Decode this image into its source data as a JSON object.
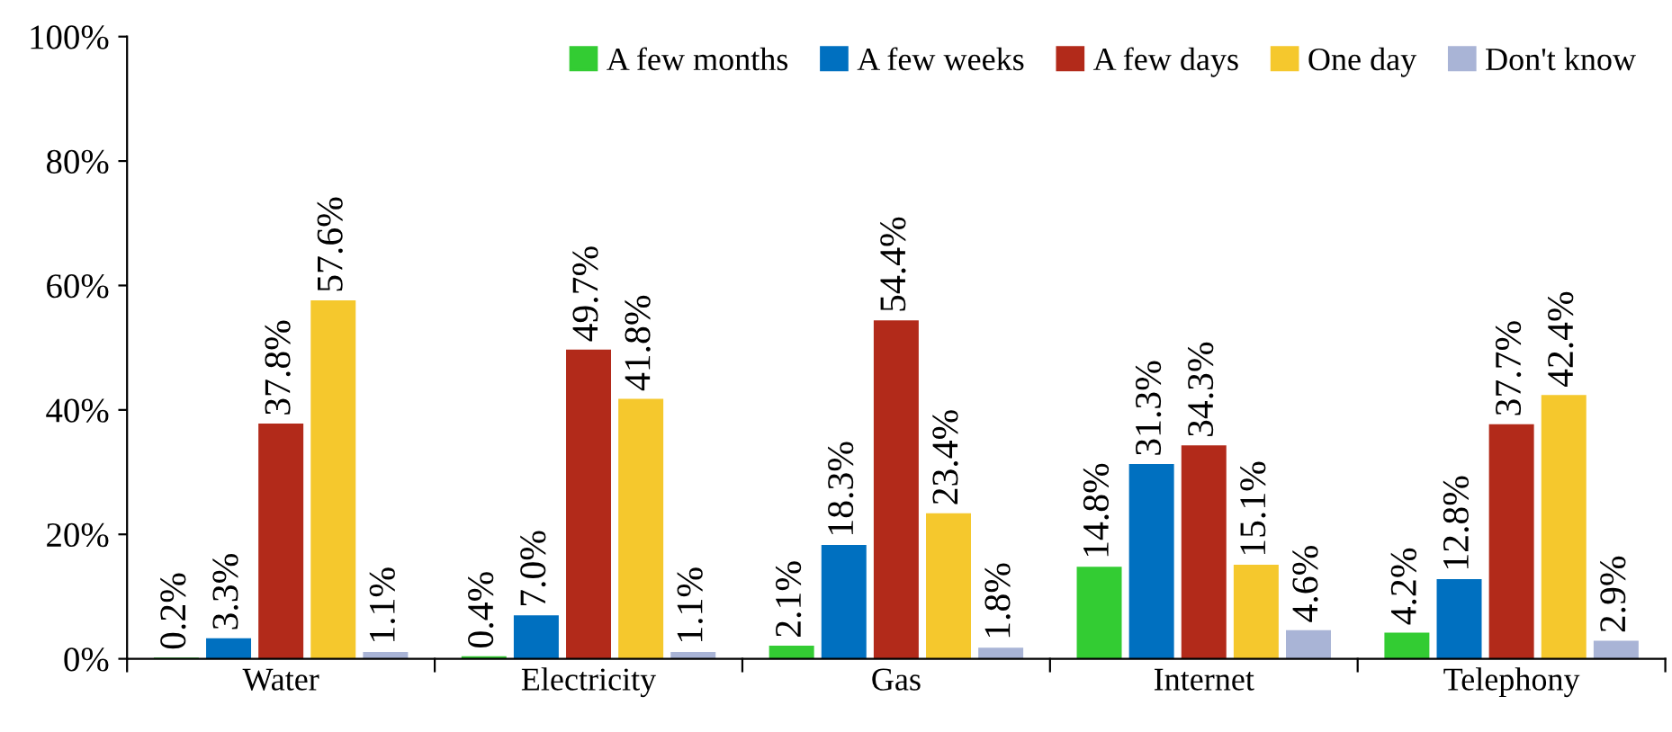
{
  "chart_data": {
    "type": "bar",
    "categories": [
      "Water",
      "Electricity",
      "Gas",
      "Internet",
      "Telephony"
    ],
    "series": [
      {
        "name": "A few months",
        "color": "#33cc33",
        "values": [
          0.2,
          0.4,
          2.1,
          14.8,
          4.2
        ],
        "value_labels": [
          "0.2%",
          "0.4%",
          "2.1%",
          "14.8%",
          "4.2%"
        ]
      },
      {
        "name": "A few weeks",
        "color": "#0070c0",
        "values": [
          3.3,
          7.0,
          18.3,
          31.3,
          12.8
        ],
        "value_labels": [
          "3.3%",
          "7.0%",
          "18.3%",
          "31.3%",
          "12.8%"
        ]
      },
      {
        "name": "A few days",
        "color": "#b22a1a",
        "values": [
          37.8,
          49.7,
          54.4,
          34.3,
          37.7
        ],
        "value_labels": [
          "37.8%",
          "49.7%",
          "54.4%",
          "34.3%",
          "37.7%"
        ]
      },
      {
        "name": "One day",
        "color": "#f5c82d",
        "values": [
          57.6,
          41.8,
          23.4,
          15.1,
          42.4
        ],
        "value_labels": [
          "57.6%",
          "41.8%",
          "23.4%",
          "15.1%",
          "42.4%"
        ]
      },
      {
        "name": "Don't know",
        "color": "#a9b4d6",
        "values": [
          1.1,
          1.1,
          1.8,
          4.6,
          2.9
        ],
        "value_labels": [
          "1.1%",
          "1.1%",
          "1.8%",
          "4.6%",
          "2.9%"
        ]
      }
    ],
    "ylim": [
      0,
      100
    ],
    "yticks": [
      {
        "value": 0,
        "label": "0%"
      },
      {
        "value": 20,
        "label": "20%"
      },
      {
        "value": 40,
        "label": "40%"
      },
      {
        "value": 60,
        "label": "60%"
      },
      {
        "value": 80,
        "label": "80%"
      },
      {
        "value": 100,
        "label": "100%"
      }
    ],
    "grid": false,
    "legend": "top right"
  }
}
